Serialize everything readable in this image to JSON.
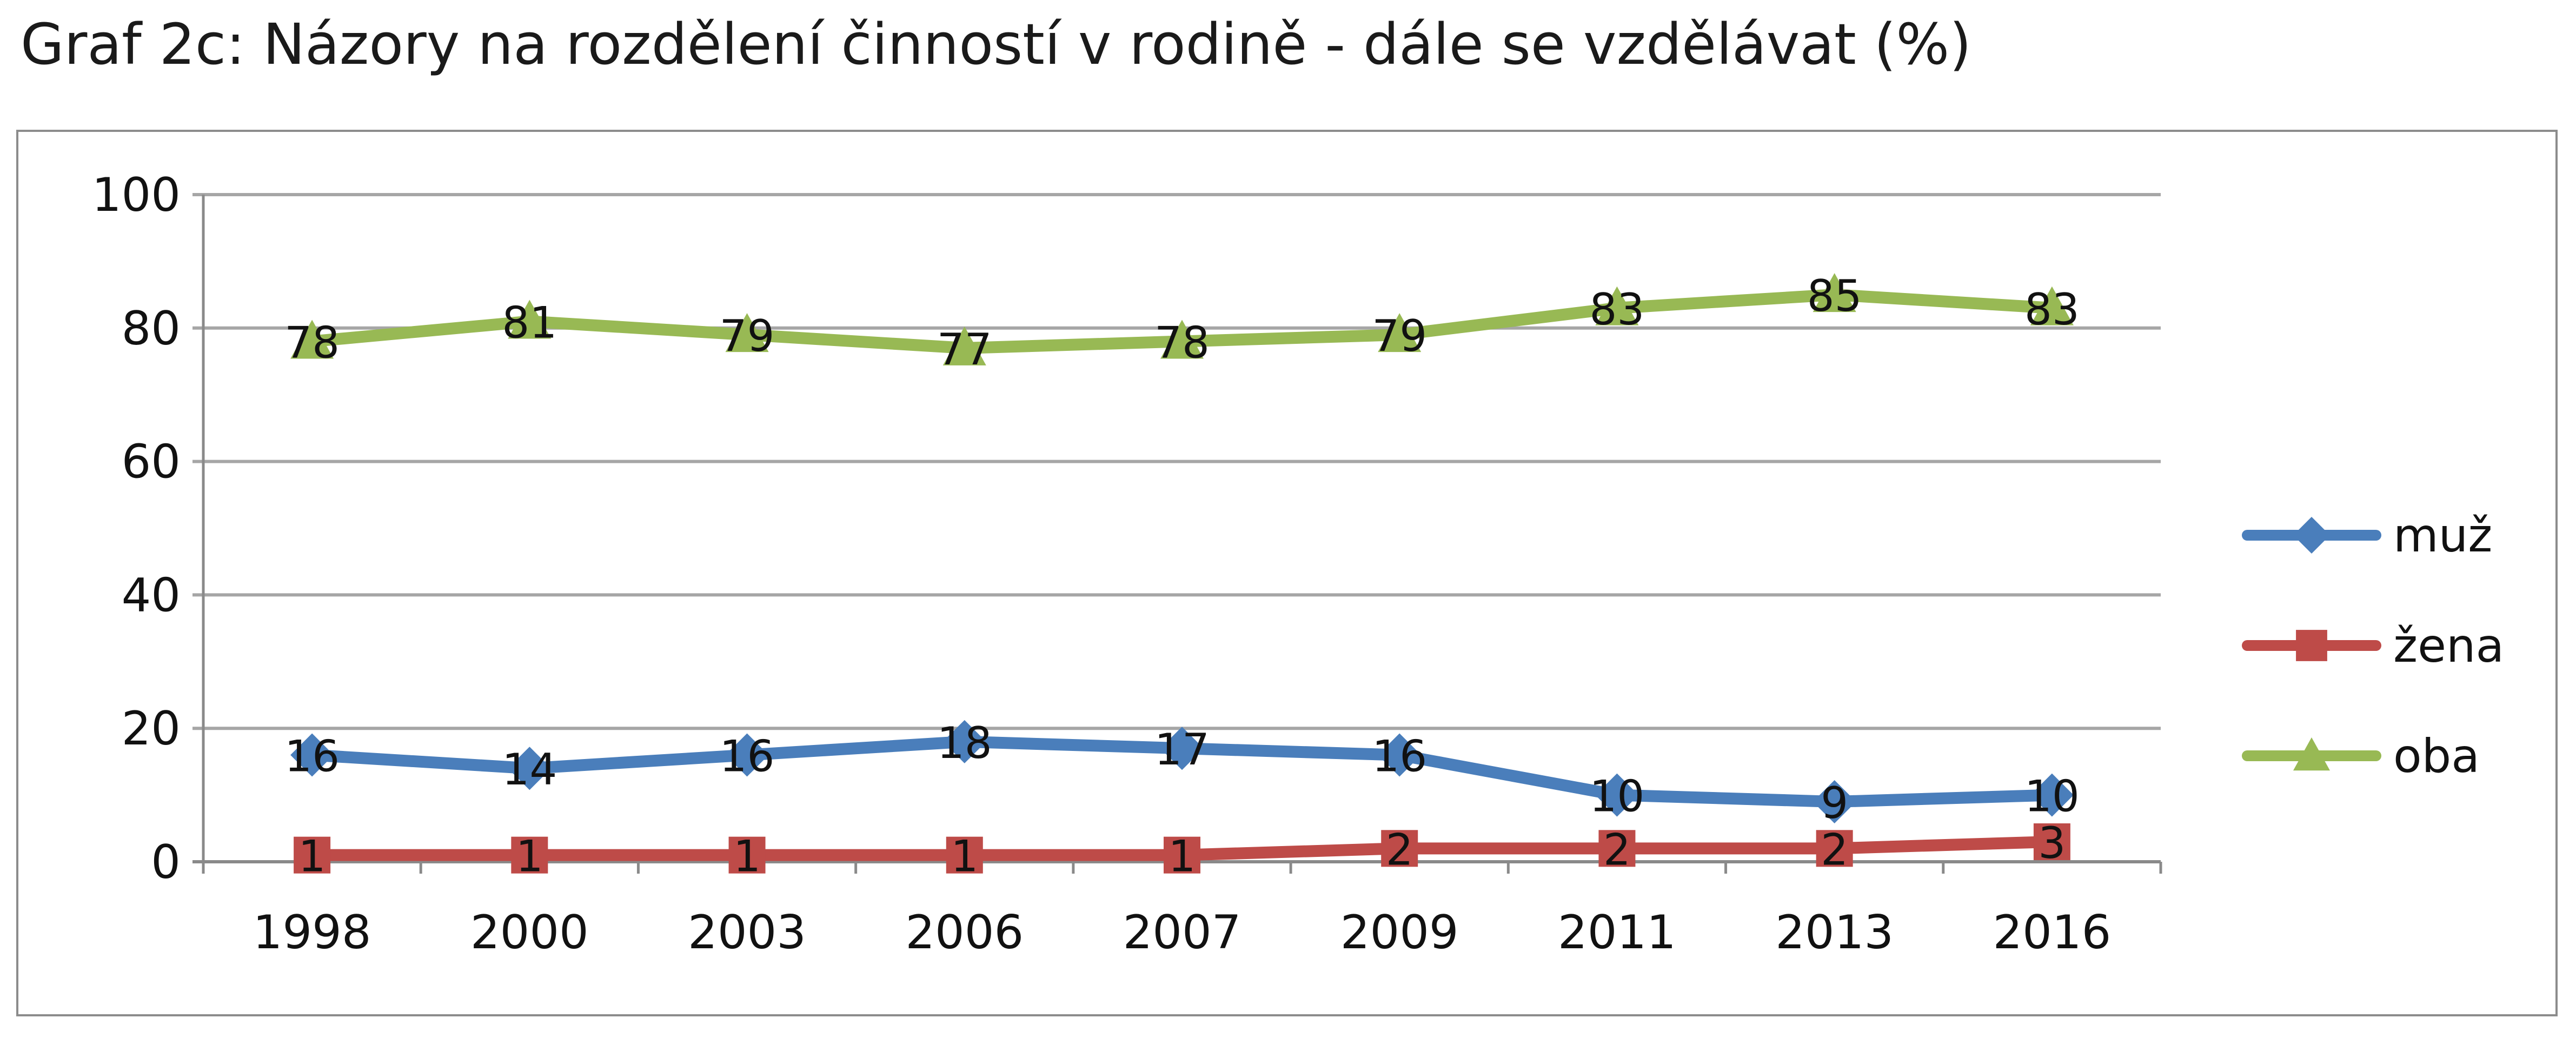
{
  "title": "Graf 2c: Názory na rozdělení činností v rodině - dále se vzdělávat (%)",
  "chart_data": {
    "type": "line",
    "title": "Graf 2c: Názory na rozdělení činností v rodině - dále se vzdělávat (%)",
    "xlabel": "",
    "ylabel": "",
    "categories": [
      "1998",
      "2000",
      "2003",
      "2006",
      "2007",
      "2009",
      "2011",
      "2013",
      "2016"
    ],
    "ylim": [
      0,
      100
    ],
    "yticks": [
      0,
      20,
      40,
      60,
      80,
      100
    ],
    "grid": true,
    "legend_position": "right",
    "series": [
      {
        "name": "muž",
        "marker": "diamond",
        "color": "#4a7ebb",
        "values": [
          16,
          14,
          16,
          18,
          17,
          16,
          10,
          9,
          10
        ]
      },
      {
        "name": "žena",
        "marker": "square",
        "color": "#be4b48",
        "values": [
          1,
          1,
          1,
          1,
          1,
          2,
          2,
          2,
          3
        ]
      },
      {
        "name": "oba",
        "marker": "triangle",
        "color": "#98b954",
        "values": [
          78,
          81,
          79,
          77,
          78,
          79,
          83,
          85,
          83
        ]
      }
    ]
  }
}
